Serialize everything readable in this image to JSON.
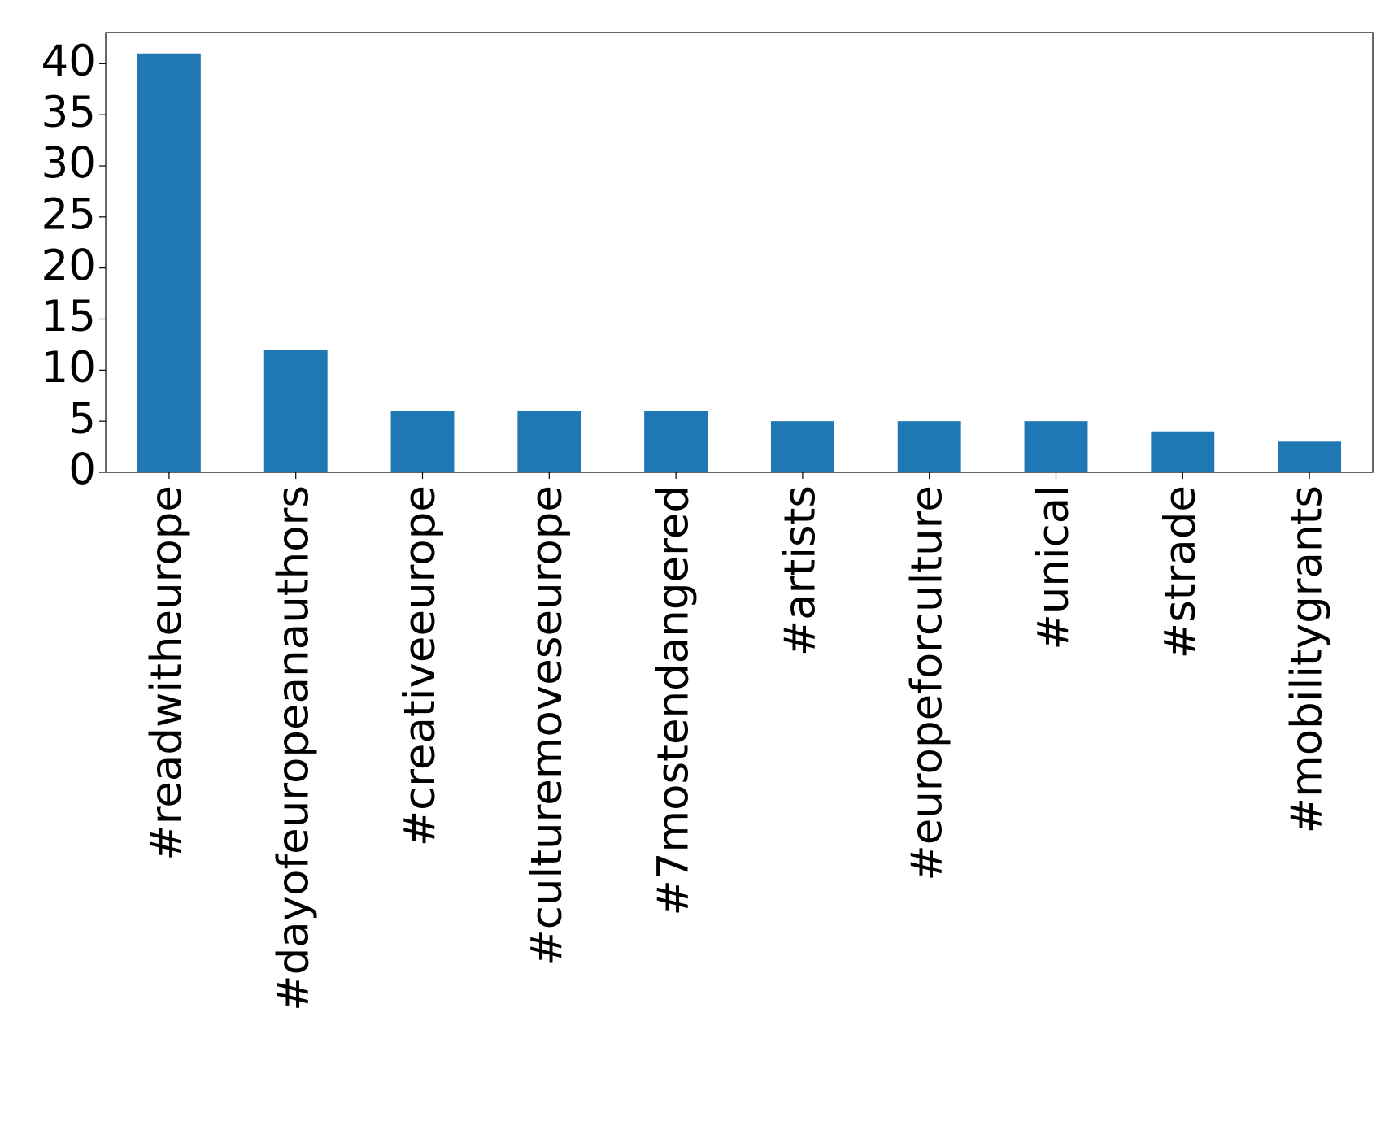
{
  "chart_data": {
    "type": "bar",
    "categories": [
      "#readwitheurope",
      "#dayofeuropeanauthors",
      "#creativeeurope",
      "#culturemoveseurope",
      "#7mostendangered",
      "#artists",
      "#europeforculture",
      "#unical",
      "#strade",
      "#mobilitygrants"
    ],
    "values": [
      41,
      12,
      6,
      6,
      6,
      5,
      5,
      5,
      4,
      3
    ],
    "color": "#1f77b4",
    "ylim": [
      0,
      43.05
    ],
    "yticks": [
      0,
      5,
      10,
      15,
      20,
      25,
      30,
      35,
      40
    ],
    "grid": false
  }
}
